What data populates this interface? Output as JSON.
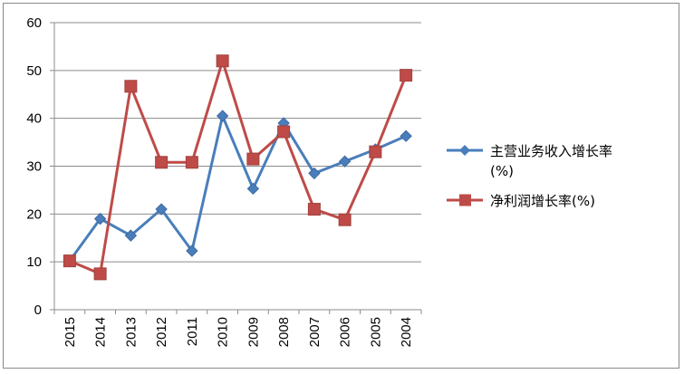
{
  "chart_data": {
    "type": "line",
    "title": "",
    "xlabel": "",
    "ylabel": "",
    "categories": [
      "2015",
      "2014",
      "2013",
      "2012",
      "2011",
      "2010",
      "2009",
      "2008",
      "2007",
      "2006",
      "2005",
      "2004"
    ],
    "ylim": [
      0,
      60
    ],
    "yticks": [
      0,
      10,
      20,
      30,
      40,
      50,
      60
    ],
    "grid": true,
    "legend_position": "right",
    "series": [
      {
        "name": "主营业务收入增长率(%)",
        "legend_lines": [
          "主营业务收入增长率",
          "(%)"
        ],
        "color": "#4a7ebb",
        "marker": "diamond",
        "values": [
          10.2,
          19,
          15.5,
          21,
          12.3,
          40.5,
          25.3,
          39,
          28.5,
          31,
          33.5,
          36.3
        ]
      },
      {
        "name": "净利润增长率(%)",
        "legend_lines": [
          "净利润增长率(%)"
        ],
        "color": "#be4b48",
        "marker": "square",
        "values": [
          10.2,
          7.5,
          46.7,
          30.8,
          30.8,
          52,
          31.5,
          37.2,
          21,
          18.8,
          33,
          49
        ]
      }
    ]
  }
}
